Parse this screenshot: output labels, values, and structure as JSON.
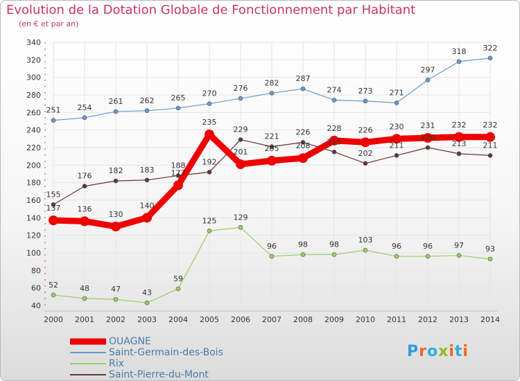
{
  "chart_data": {
    "type": "line",
    "title": "Evolution de la Dotation Globale de Fonctionnement par Habitant",
    "subtitle": "(en € et par an)",
    "x": [
      "2000",
      "2001",
      "2002",
      "2003",
      "2004",
      "2005",
      "2006",
      "2007",
      "2008",
      "2009",
      "2010",
      "2011",
      "2012",
      "2013",
      "2014"
    ],
    "ylim": [
      40,
      340
    ],
    "yticks": [
      40,
      60,
      80,
      100,
      120,
      140,
      160,
      180,
      200,
      220,
      240,
      260,
      280,
      300,
      320,
      340
    ],
    "grid": true,
    "legend_position": "bottom-left",
    "series": [
      {
        "name": "OUAGNE",
        "color": "#ee0000",
        "values": [
          137,
          136,
          130,
          140,
          177,
          235,
          201,
          205,
          208,
          228,
          226,
          230,
          231,
          232,
          232
        ]
      },
      {
        "name": "Saint-Germain-des-Bois",
        "color": "#6699cc",
        "values": [
          251,
          254,
          261,
          262,
          265,
          270,
          276,
          282,
          287,
          274,
          273,
          271,
          297,
          318,
          322
        ]
      },
      {
        "name": "Rix",
        "color": "#99cc66",
        "values": [
          52,
          48,
          47,
          43,
          59,
          125,
          129,
          96,
          98,
          98,
          103,
          96,
          96,
          97,
          93
        ]
      },
      {
        "name": "Saint-Pierre-du-Mont",
        "color": "#663333",
        "values": [
          155,
          176,
          182,
          183,
          188,
          192,
          229,
          221,
          226,
          215,
          202,
          211,
          220,
          213,
          211
        ]
      }
    ]
  },
  "logo": {
    "text": "Proxiti",
    "letter_colors": [
      "#3399dd",
      "#ee6622",
      "#33aadd",
      "#88bb22",
      "#ee6622",
      "#33aadd",
      "#ee6622"
    ]
  }
}
